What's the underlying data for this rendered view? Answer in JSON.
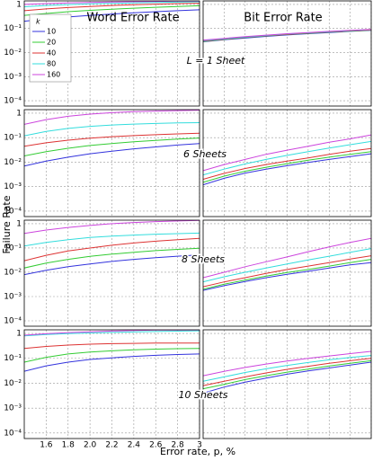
{
  "chart_data": {
    "type": "line",
    "log_y": true,
    "grid": true,
    "ylabel": "Failure Rate",
    "xlabel": "Error rate, p, %",
    "column_titles": [
      "Word Error Rate",
      "Bit Error Rate"
    ],
    "xlim": [
      1.4,
      3.0
    ],
    "xticks": [
      1.6,
      1.8,
      {
        "value": 2,
        "label": "2.0"
      },
      2.2,
      2.4,
      2.6,
      2.8,
      3
    ],
    "ylim": [
      6e-05,
      1.4
    ],
    "yticks": [
      {
        "value": 0.0001,
        "label": "10⁻⁴"
      },
      {
        "value": 0.001,
        "label": "10⁻³"
      },
      {
        "value": 0.01,
        "label": "10⁻²"
      },
      {
        "value": 0.1,
        "label": "10⁻¹"
      },
      1
    ],
    "legend_title": "k",
    "series": [
      {
        "name": "10",
        "color": "#3333dd"
      },
      {
        "name": "20",
        "color": "#33cc33"
      },
      {
        "name": "40",
        "color": "#dd3333"
      },
      {
        "name": "80",
        "color": "#33dddd"
      },
      {
        "name": "160",
        "color": "#cc44dd"
      }
    ],
    "x": [
      1.4,
      1.6,
      1.8,
      2.0,
      2.2,
      2.4,
      2.6,
      2.8,
      3.0
    ],
    "rows": [
      {
        "annotation": "L = 1 Sheet",
        "panels": [
          [
            [
              0.2,
              0.25,
              0.3,
              0.35,
              0.4,
              0.45,
              0.5,
              0.55,
              0.6
            ],
            [
              0.35,
              0.42,
              0.5,
              0.57,
              0.63,
              0.7,
              0.76,
              0.82,
              0.88
            ],
            [
              0.55,
              0.65,
              0.74,
              0.82,
              0.9,
              0.97,
              1.03,
              1.08,
              1.12
            ],
            [
              0.8,
              0.9,
              0.98,
              1.05,
              1.1,
              1.15,
              1.2,
              1.24,
              1.28
            ],
            [
              1.0,
              1.08,
              1.15,
              1.2,
              1.25,
              1.3,
              1.33,
              1.36,
              1.38
            ]
          ],
          [
            [
              0.028,
              0.034,
              0.04,
              0.047,
              0.054,
              0.061,
              0.068,
              0.076,
              0.084
            ],
            [
              0.029,
              0.035,
              0.042,
              0.049,
              0.056,
              0.063,
              0.07,
              0.078,
              0.086
            ],
            [
              0.03,
              0.036,
              0.043,
              0.05,
              0.057,
              0.065,
              0.072,
              0.08,
              0.088
            ],
            [
              0.031,
              0.037,
              0.044,
              0.051,
              0.059,
              0.066,
              0.074,
              0.082,
              0.09
            ],
            [
              0.033,
              0.039,
              0.046,
              0.053,
              0.061,
              0.068,
              0.076,
              0.084,
              0.092
            ]
          ]
        ]
      },
      {
        "annotation": "6 Sheets",
        "panels": [
          [
            [
              0.007,
              0.011,
              0.016,
              0.022,
              0.028,
              0.035,
              0.042,
              0.05,
              0.058
            ],
            [
              0.018,
              0.027,
              0.037,
              0.048,
              0.058,
              0.068,
              0.078,
              0.088,
              0.097
            ],
            [
              0.045,
              0.062,
              0.079,
              0.095,
              0.11,
              0.122,
              0.133,
              0.143,
              0.152
            ],
            [
              0.12,
              0.18,
              0.24,
              0.29,
              0.33,
              0.36,
              0.38,
              0.4,
              0.41
            ],
            [
              0.35,
              0.55,
              0.75,
              0.92,
              1.05,
              1.15,
              1.22,
              1.28,
              1.33
            ]
          ],
          [
            [
              0.0012,
              0.0022,
              0.0036,
              0.0052,
              0.0072,
              0.0098,
              0.013,
              0.017,
              0.022
            ],
            [
              0.0015,
              0.0027,
              0.0043,
              0.0062,
              0.0087,
              0.012,
              0.016,
              0.021,
              0.027
            ],
            [
              0.002,
              0.0035,
              0.0055,
              0.008,
              0.011,
              0.015,
              0.021,
              0.028,
              0.036
            ],
            [
              0.003,
              0.0052,
              0.0085,
              0.013,
              0.019,
              0.027,
              0.038,
              0.052,
              0.07
            ],
            [
              0.0045,
              0.008,
              0.013,
              0.021,
              0.031,
              0.045,
              0.065,
              0.09,
              0.13
            ]
          ]
        ]
      },
      {
        "annotation": "8 Sheets",
        "panels": [
          [
            [
              0.008,
              0.012,
              0.017,
              0.022,
              0.028,
              0.034,
              0.04,
              0.046,
              0.052
            ],
            [
              0.015,
              0.024,
              0.034,
              0.045,
              0.056,
              0.067,
              0.078,
              0.088,
              0.098
            ],
            [
              0.03,
              0.05,
              0.075,
              0.1,
              0.13,
              0.16,
              0.19,
              0.22,
              0.25
            ],
            [
              0.12,
              0.17,
              0.22,
              0.27,
              0.31,
              0.34,
              0.37,
              0.39,
              0.41
            ],
            [
              0.4,
              0.55,
              0.7,
              0.85,
              1.0,
              1.12,
              1.22,
              1.3,
              1.36
            ]
          ],
          [
            [
              0.0018,
              0.0028,
              0.0042,
              0.006,
              0.0083,
              0.011,
              0.015,
              0.02,
              0.025
            ],
            [
              0.002,
              0.0032,
              0.0048,
              0.007,
              0.0097,
              0.013,
              0.018,
              0.025,
              0.034
            ],
            [
              0.0025,
              0.004,
              0.006,
              0.009,
              0.013,
              0.018,
              0.025,
              0.035,
              0.048
            ],
            [
              0.004,
              0.0065,
              0.01,
              0.015,
              0.022,
              0.032,
              0.046,
              0.066,
              0.095
            ],
            [
              0.006,
              0.01,
              0.017,
              0.027,
              0.043,
              0.07,
              0.11,
              0.17,
              0.25
            ]
          ]
        ]
      },
      {
        "annotation": "10 Sheets",
        "panels": [
          [
            [
              0.03,
              0.05,
              0.07,
              0.09,
              0.105,
              0.12,
              0.132,
              0.142,
              0.15
            ],
            [
              0.07,
              0.11,
              0.15,
              0.18,
              0.2,
              0.22,
              0.235,
              0.245,
              0.25
            ],
            [
              0.25,
              0.3,
              0.34,
              0.37,
              0.39,
              0.4,
              0.41,
              0.41,
              0.41
            ],
            [
              0.8,
              0.9,
              0.98,
              1.05,
              1.1,
              1.15,
              1.2,
              1.24,
              1.28
            ],
            [
              0.85,
              0.97,
              1.08,
              1.17,
              1.25,
              1.32,
              1.36,
              1.38,
              1.39
            ]
          ],
          [
            [
              0.004,
              0.007,
              0.011,
              0.016,
              0.023,
              0.031,
              0.041,
              0.054,
              0.07
            ],
            [
              0.006,
              0.009,
              0.014,
              0.02,
              0.028,
              0.037,
              0.049,
              0.063,
              0.08
            ],
            [
              0.008,
              0.012,
              0.018,
              0.026,
              0.036,
              0.048,
              0.063,
              0.08,
              0.1
            ],
            [
              0.012,
              0.018,
              0.027,
              0.038,
              0.052,
              0.068,
              0.087,
              0.108,
              0.13
            ],
            [
              0.02,
              0.03,
              0.043,
              0.059,
              0.078,
              0.1,
              0.125,
              0.155,
              0.19
            ]
          ]
        ]
      }
    ]
  }
}
